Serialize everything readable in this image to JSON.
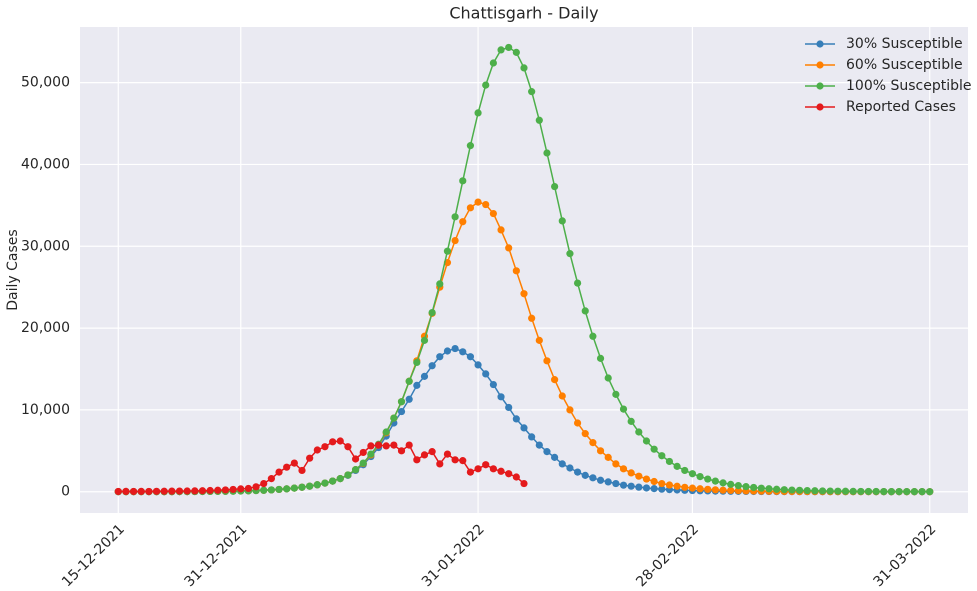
{
  "chart_data": {
    "type": "line",
    "title": "Chattisgarh - Daily",
    "y_label": "Daily Cases",
    "grid": true,
    "legend": "upper right",
    "x": [
      "2021-12-15",
      "2021-12-16",
      "2021-12-17",
      "2021-12-18",
      "2021-12-19",
      "2021-12-20",
      "2021-12-21",
      "2021-12-22",
      "2021-12-23",
      "2021-12-24",
      "2021-12-25",
      "2021-12-26",
      "2021-12-27",
      "2021-12-28",
      "2021-12-29",
      "2021-12-30",
      "2021-12-31",
      "2022-01-01",
      "2022-01-02",
      "2022-01-03",
      "2022-01-04",
      "2022-01-05",
      "2022-01-06",
      "2022-01-07",
      "2022-01-08",
      "2022-01-09",
      "2022-01-10",
      "2022-01-11",
      "2022-01-12",
      "2022-01-13",
      "2022-01-14",
      "2022-01-15",
      "2022-01-16",
      "2022-01-17",
      "2022-01-18",
      "2022-01-19",
      "2022-01-20",
      "2022-01-21",
      "2022-01-22",
      "2022-01-23",
      "2022-01-24",
      "2022-01-25",
      "2022-01-26",
      "2022-01-27",
      "2022-01-28",
      "2022-01-29",
      "2022-01-30",
      "2022-01-31",
      "2022-02-01",
      "2022-02-02",
      "2022-02-03",
      "2022-02-04",
      "2022-02-05",
      "2022-02-06",
      "2022-02-07",
      "2022-02-08",
      "2022-02-09",
      "2022-02-10",
      "2022-02-11",
      "2022-02-12",
      "2022-02-13",
      "2022-02-14",
      "2022-02-15",
      "2022-02-16",
      "2022-02-17",
      "2022-02-18",
      "2022-02-19",
      "2022-02-20",
      "2022-02-21",
      "2022-02-22",
      "2022-02-23",
      "2022-02-24",
      "2022-02-25",
      "2022-02-26",
      "2022-02-27",
      "2022-02-28",
      "2022-03-01",
      "2022-03-02",
      "2022-03-03",
      "2022-03-04",
      "2022-03-05",
      "2022-03-06",
      "2022-03-07",
      "2022-03-08",
      "2022-03-09",
      "2022-03-10",
      "2022-03-11",
      "2022-03-12",
      "2022-03-13",
      "2022-03-14",
      "2022-03-15",
      "2022-03-16",
      "2022-03-17",
      "2022-03-18",
      "2022-03-19",
      "2022-03-20",
      "2022-03-21",
      "2022-03-22",
      "2022-03-23",
      "2022-03-24",
      "2022-03-25",
      "2022-03-26",
      "2022-03-27",
      "2022-03-28",
      "2022-03-29",
      "2022-03-30",
      "2022-03-31"
    ],
    "xlim": [
      "2021-12-10",
      "2022-04-05"
    ],
    "xticks": [
      {
        "value": "2021-12-15",
        "label": "15-12-2021"
      },
      {
        "value": "2021-12-31",
        "label": "31-12-2021"
      },
      {
        "value": "2022-01-31",
        "label": "31-01-2022"
      },
      {
        "value": "2022-02-28",
        "label": "28-02-2022"
      },
      {
        "value": "2022-03-31",
        "label": "31-03-2022"
      }
    ],
    "ylim": [
      -2600,
      56800
    ],
    "yticks": [
      0,
      {
        "value": 10000,
        "label": "10,000"
      },
      {
        "value": 20000,
        "label": "20,000"
      },
      {
        "value": 30000,
        "label": "30,000"
      },
      {
        "value": 40000,
        "label": "40,000"
      },
      {
        "value": 50000,
        "label": "50,000"
      }
    ],
    "series": [
      {
        "name": "30% Susceptible",
        "color": "#377eb8",
        "values": [
          2,
          2,
          3,
          4,
          5,
          6,
          8,
          10,
          13,
          17,
          21,
          27,
          34,
          43,
          55,
          69,
          87,
          110,
          140,
          175,
          220,
          280,
          350,
          440,
          550,
          680,
          850,
          1050,
          1300,
          1600,
          2000,
          2600,
          3300,
          4300,
          5400,
          6800,
          8400,
          9800,
          11300,
          13000,
          14100,
          15400,
          16500,
          17200,
          17500,
          17100,
          16500,
          15500,
          14400,
          13100,
          11600,
          10300,
          8900,
          7800,
          6700,
          5700,
          4900,
          4200,
          3400,
          2900,
          2400,
          2000,
          1700,
          1400,
          1200,
          1000,
          800,
          680,
          560,
          460,
          380,
          310,
          260,
          210,
          170,
          140,
          115,
          95,
          78,
          64,
          52,
          43,
          35,
          29,
          24,
          20,
          16,
          13,
          11,
          9,
          7,
          6,
          5,
          4,
          3,
          3,
          2,
          2,
          2,
          1,
          1,
          1,
          1,
          1,
          1,
          1,
          1
        ]
      },
      {
        "name": "60% Susceptible",
        "color": "#ff7f00",
        "values": [
          2,
          2,
          3,
          4,
          5,
          6,
          8,
          10,
          13,
          17,
          21,
          27,
          34,
          43,
          55,
          69,
          87,
          110,
          140,
          175,
          220,
          280,
          350,
          440,
          550,
          680,
          850,
          1050,
          1300,
          1600,
          2050,
          2700,
          3450,
          4500,
          5700,
          7200,
          9000,
          11000,
          13500,
          16000,
          19000,
          21800,
          25000,
          28000,
          30700,
          33000,
          34700,
          35400,
          35100,
          34000,
          32000,
          29800,
          27000,
          24200,
          21200,
          18500,
          16000,
          13700,
          11700,
          10000,
          8400,
          7100,
          6000,
          5000,
          4200,
          3400,
          2800,
          2300,
          1900,
          1550,
          1250,
          1000,
          820,
          670,
          540,
          440,
          360,
          290,
          235,
          190,
          155,
          125,
          100,
          82,
          66,
          54,
          44,
          36,
          29,
          23,
          19,
          15,
          12,
          10,
          8,
          6,
          5,
          4,
          3,
          3,
          2,
          2,
          2,
          1,
          1,
          1,
          1
        ]
      },
      {
        "name": "100% Susceptible",
        "color": "#4daf4a",
        "values": [
          2,
          2,
          3,
          4,
          5,
          6,
          8,
          10,
          13,
          17,
          21,
          27,
          34,
          43,
          55,
          69,
          87,
          110,
          140,
          175,
          220,
          280,
          350,
          440,
          550,
          680,
          850,
          1050,
          1300,
          1600,
          2050,
          2700,
          3500,
          4600,
          5800,
          7300,
          9000,
          11000,
          13500,
          15800,
          18500,
          21900,
          25400,
          29400,
          33600,
          38000,
          42300,
          46300,
          49700,
          52400,
          54000,
          54300,
          53700,
          51800,
          48900,
          45400,
          41400,
          37300,
          33100,
          29100,
          25500,
          22100,
          19000,
          16300,
          13900,
          11900,
          10100,
          8600,
          7300,
          6200,
          5200,
          4400,
          3700,
          3100,
          2600,
          2200,
          1850,
          1550,
          1300,
          1080,
          900,
          750,
          620,
          520,
          430,
          360,
          300,
          250,
          205,
          170,
          140,
          117,
          97,
          80,
          66,
          55,
          45,
          37,
          31,
          26,
          21,
          17,
          14,
          12,
          10,
          8,
          7
        ]
      },
      {
        "name": "Reported Cases",
        "color": "#e41a1c",
        "values": [
          30,
          40,
          30,
          40,
          30,
          50,
          60,
          70,
          80,
          90,
          100,
          120,
          150,
          180,
          220,
          280,
          350,
          400,
          600,
          1000,
          1600,
          2400,
          3000,
          3500,
          2600,
          4100,
          5100,
          5500,
          6100,
          6200,
          5500,
          4000,
          4800,
          5600,
          5700,
          5600,
          5700,
          5000,
          5700,
          3900,
          4500,
          4900,
          3400,
          4600,
          3900,
          3800,
          2400,
          2800,
          3300,
          2800,
          2500,
          2200,
          1800,
          1000,
          null,
          null,
          null,
          null,
          null,
          null,
          null,
          null,
          null,
          null,
          null,
          null,
          null,
          null,
          null,
          null,
          null,
          null,
          null,
          null,
          null,
          null,
          null,
          null,
          null,
          null,
          null,
          null,
          null,
          null,
          null,
          null,
          null,
          null,
          null,
          null,
          null,
          null,
          null,
          null,
          null,
          null,
          null,
          null,
          null,
          null,
          null,
          null,
          null,
          null,
          null,
          null,
          null
        ]
      }
    ]
  }
}
